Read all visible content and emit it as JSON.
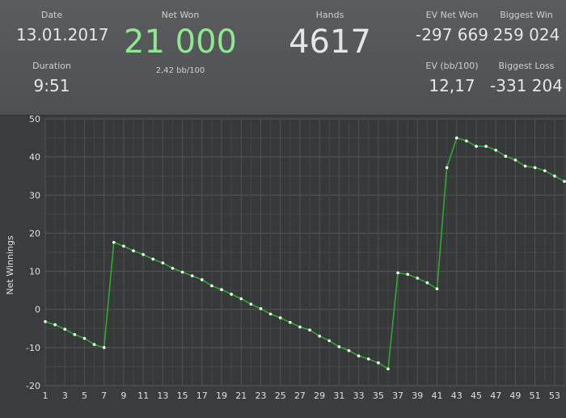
{
  "stats": {
    "date": {
      "label": "Date",
      "value": "13.01.2017"
    },
    "duration": {
      "label": "Duration",
      "value": "9:51"
    },
    "net_won": {
      "label": "Net Won",
      "value": "21 000",
      "sub": "2,42 bb/100"
    },
    "hands": {
      "label": "Hands",
      "value": "4617"
    },
    "ev_net_won": {
      "label": "EV Net Won",
      "value": "-297 669"
    },
    "biggest_win": {
      "label": "Biggest Win",
      "value": "259 024"
    },
    "ev_bb100": {
      "label": "EV (bb/100)",
      "value": "12,17"
    },
    "biggest_loss": {
      "label": "Biggest Loss",
      "value": "-331 204"
    }
  },
  "colors": {
    "net_won": "#8ee88e",
    "line": "#2faa2f",
    "point": "#ffffff"
  },
  "chart_data": {
    "type": "line",
    "ylabel": "Net Winnings",
    "xlabel": "",
    "ylim": [
      -20,
      50
    ],
    "xlim": [
      1,
      54
    ],
    "yticks": [
      -20,
      -10,
      0,
      10,
      20,
      30,
      40,
      50
    ],
    "xticks": [
      1,
      3,
      5,
      7,
      9,
      11,
      13,
      15,
      17,
      19,
      21,
      23,
      25,
      27,
      29,
      31,
      33,
      35,
      37,
      39,
      41,
      43,
      45,
      47,
      49,
      51,
      53
    ],
    "grid": true,
    "x": [
      1,
      2,
      3,
      4,
      5,
      6,
      7,
      8,
      9,
      10,
      11,
      12,
      13,
      14,
      15,
      16,
      17,
      18,
      19,
      20,
      21,
      22,
      23,
      24,
      25,
      26,
      27,
      28,
      29,
      30,
      31,
      32,
      33,
      34,
      35,
      36,
      37,
      38,
      39,
      40,
      41,
      42,
      43,
      44,
      45,
      46,
      47,
      48,
      49,
      50,
      51,
      52,
      53,
      54
    ],
    "y": [
      -3.2,
      -4.0,
      -5.2,
      -6.6,
      -7.6,
      -9.2,
      -10.0,
      17.6,
      16.6,
      15.4,
      14.4,
      13.2,
      12.2,
      10.8,
      9.8,
      8.8,
      7.8,
      6.2,
      5.2,
      4.0,
      2.8,
      1.4,
      0.2,
      -1.2,
      -2.2,
      -3.4,
      -4.6,
      -5.4,
      -7.0,
      -8.2,
      -9.8,
      -10.8,
      -12.2,
      -13.0,
      -14.0,
      -15.6,
      9.6,
      9.2,
      8.2,
      7.0,
      5.4,
      37.2,
      45.0,
      44.2,
      42.8,
      42.8,
      41.8,
      40.2,
      39.2,
      37.6,
      37.2,
      36.4,
      35.0,
      33.6
    ]
  }
}
